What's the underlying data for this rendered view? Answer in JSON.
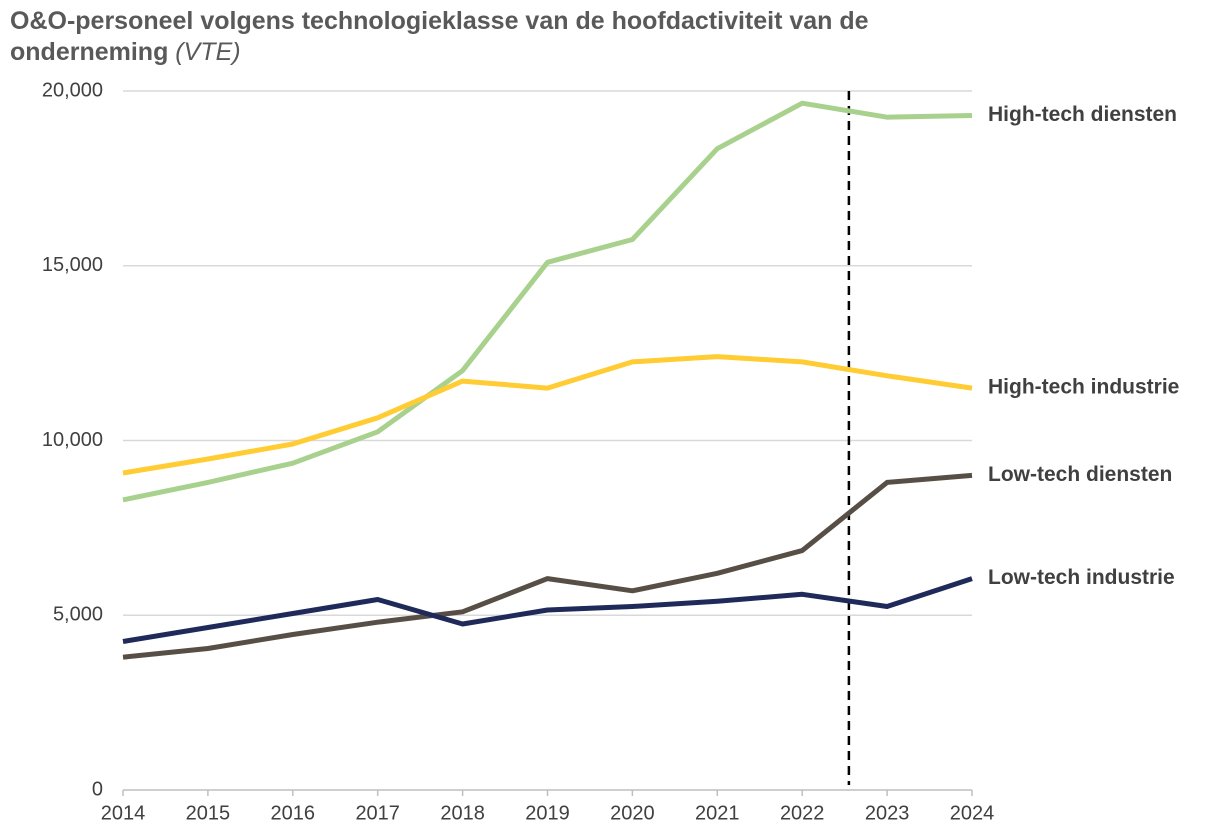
{
  "chart_data": {
    "type": "line",
    "title": "O&O-personeel volgens technologieklasse van de hoofdactiviteit van de onderneming",
    "title_unit": "(VTE)",
    "x": [
      2014,
      2015,
      2016,
      2017,
      2018,
      2019,
      2020,
      2021,
      2022,
      2023,
      2024
    ],
    "xlim": [
      2014,
      2024
    ],
    "xticks": [
      2014,
      2015,
      2016,
      2017,
      2018,
      2019,
      2020,
      2021,
      2022,
      2023,
      2024
    ],
    "ylim": [
      0,
      20000
    ],
    "yticks": [
      0,
      {
        "value": 5000,
        "label": "5,000"
      },
      {
        "value": 10000,
        "label": "10,000"
      },
      {
        "value": 15000,
        "label": "15,000"
      },
      {
        "value": 20000,
        "label": "20,000"
      }
    ],
    "grid": true,
    "reference_line": {
      "x": 2022.55,
      "style": "dashed"
    },
    "series": [
      {
        "name": "High-tech diensten",
        "color": "#a9d18e",
        "values": [
          8300,
          8800,
          9350,
          10250,
          12000,
          15100,
          15750,
          18350,
          19650,
          19250,
          19300
        ]
      },
      {
        "name": "High-tech industrie",
        "color": "#ffcc33",
        "values": [
          9070,
          9470,
          9900,
          10650,
          11700,
          11500,
          12250,
          12400,
          12250,
          11850,
          11500
        ]
      },
      {
        "name": "Low-tech diensten",
        "color": "#574f45",
        "values": [
          3800,
          4050,
          4450,
          4800,
          5100,
          6050,
          5700,
          6200,
          6850,
          8800,
          9000
        ]
      },
      {
        "name": "Low-tech industrie",
        "color": "#1f2a5a",
        "values": [
          4250,
          4650,
          5050,
          5450,
          4750,
          5150,
          5250,
          5400,
          5600,
          5250,
          6050
        ]
      }
    ]
  }
}
